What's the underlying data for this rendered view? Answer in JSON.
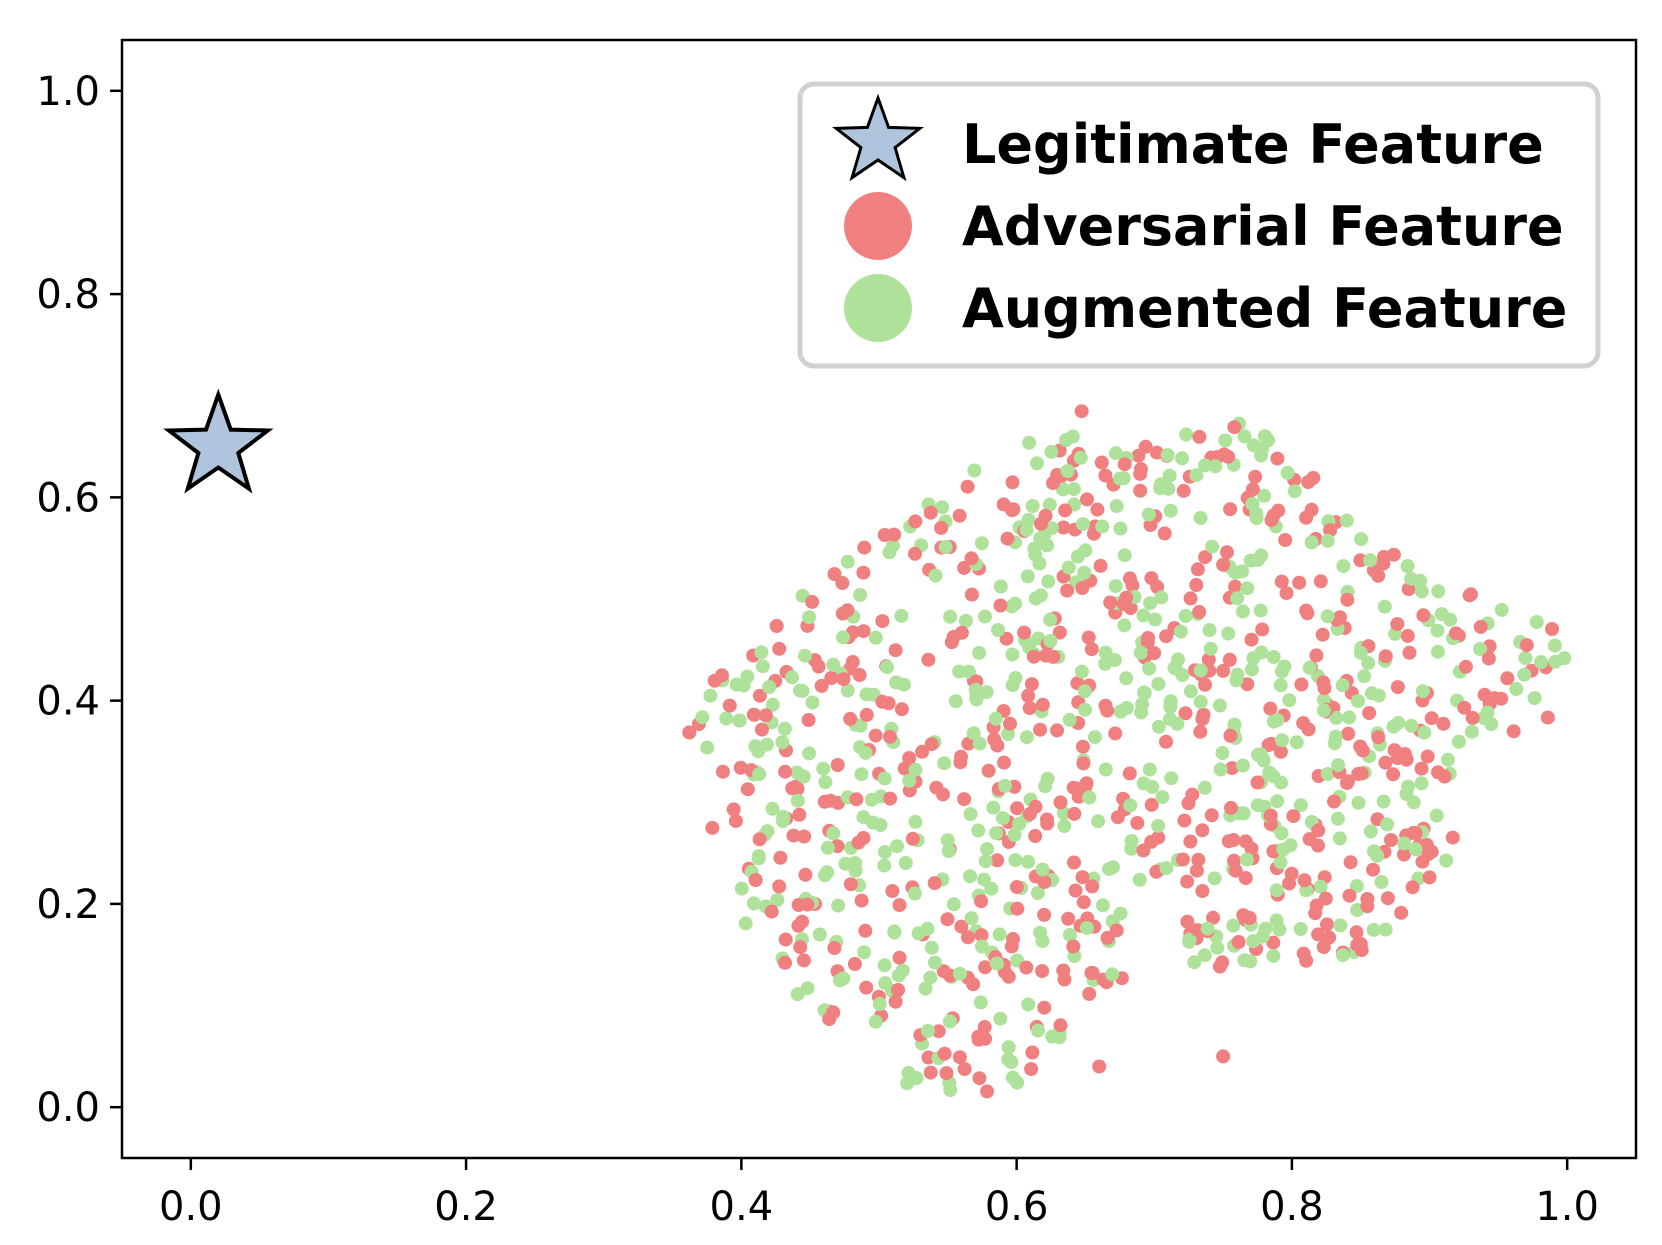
{
  "chart_data": {
    "type": "scatter",
    "title": "",
    "xlabel": "",
    "ylabel": "",
    "xlim": [
      -0.05,
      1.05
    ],
    "ylim": [
      -0.05,
      1.05
    ],
    "xticks": [
      0.0,
      0.2,
      0.4,
      0.6,
      0.8,
      1.0
    ],
    "yticks": [
      0.0,
      0.2,
      0.4,
      0.6,
      0.8,
      1.0
    ],
    "xtick_labels": [
      "0.0",
      "0.2",
      "0.4",
      "0.6",
      "0.8",
      "1.0"
    ],
    "ytick_labels": [
      "0.0",
      "0.2",
      "0.4",
      "0.6",
      "0.8",
      "1.0"
    ],
    "grid": false,
    "legend_position": "top-right",
    "series": [
      {
        "name": "Legitimate Feature",
        "marker": "star",
        "color": "#b0c4de",
        "edge_color": "#000000",
        "points": [
          [
            0.02,
            0.65
          ]
        ]
      },
      {
        "name": "Adversarial Feature",
        "marker": "circle",
        "color": "#f08080",
        "cluster": {
          "count": 560,
          "x_range": [
            0.36,
            0.99
          ],
          "y_range": [
            0.0,
            0.69
          ],
          "seed": 7
        }
      },
      {
        "name": "Augmented Feature",
        "marker": "circle",
        "color": "#aee29a",
        "cluster": {
          "count": 560,
          "x_range": [
            0.37,
            1.0
          ],
          "y_range": [
            0.01,
            0.69
          ],
          "seed": 13
        }
      }
    ],
    "outliers": [
      [
        0.75,
        0.05
      ],
      [
        0.66,
        0.04
      ]
    ]
  }
}
